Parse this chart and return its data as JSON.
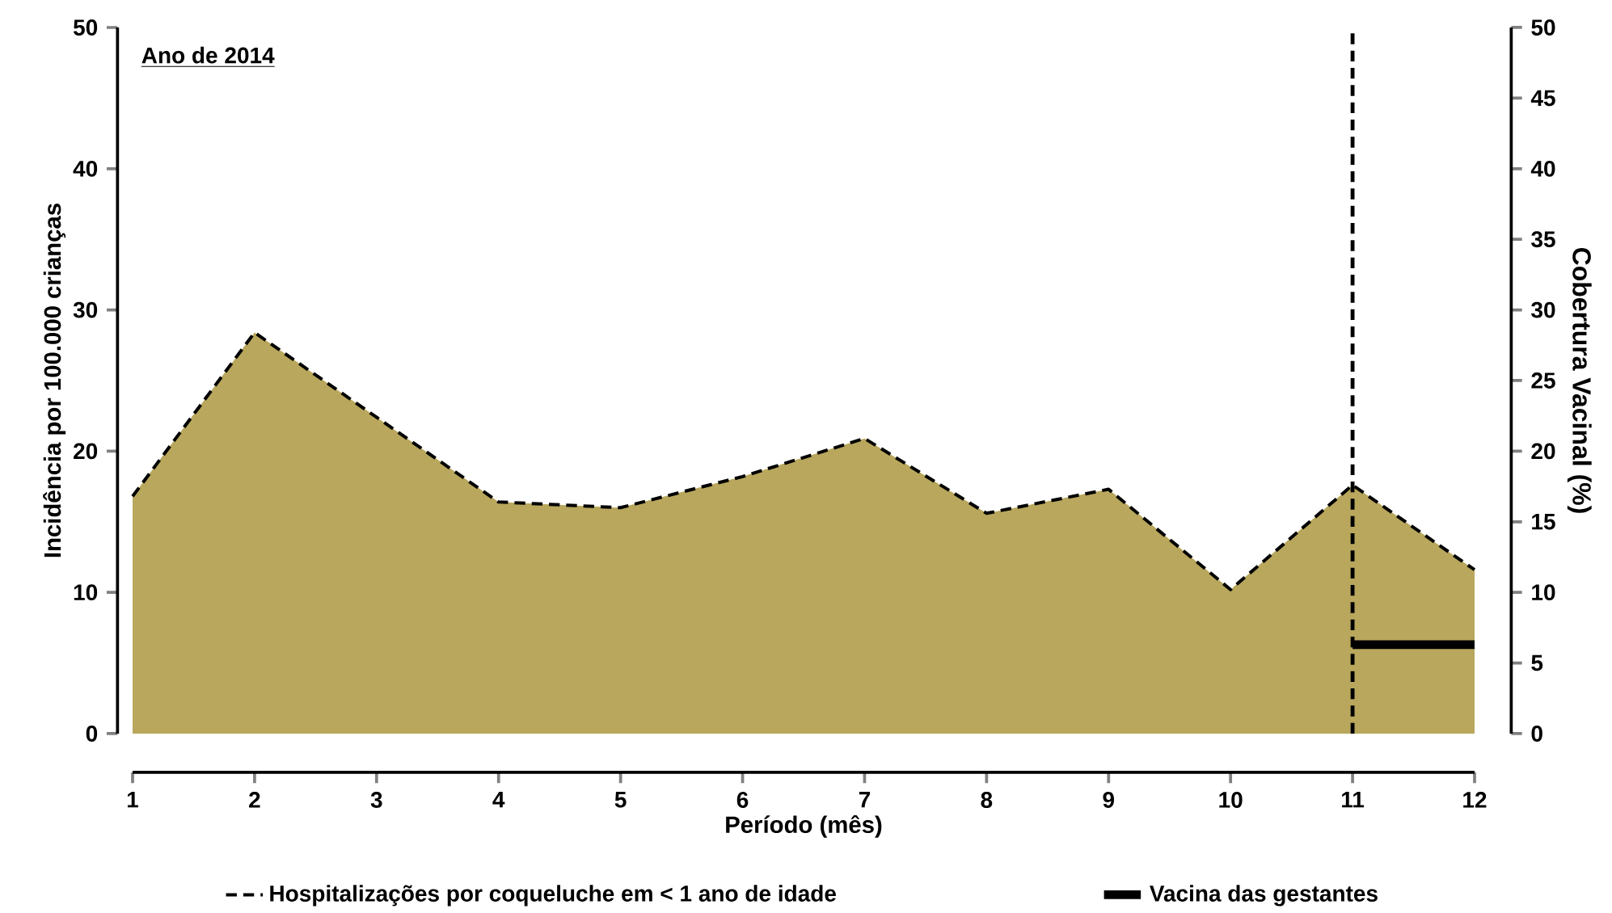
{
  "chart_data": {
    "type": "area",
    "xlabel": "Período (mês)",
    "ylabel": "Incidência por 100.000 crianças",
    "y2label": "Cobertura Vacinal (%)",
    "annotations": [
      "Ano de 2014"
    ],
    "x": [
      1,
      2,
      3,
      4,
      5,
      6,
      7,
      8,
      9,
      10,
      11,
      12
    ],
    "series": [
      {
        "name": "Hospitalizações por coqueluche em < 1 ano de idade",
        "color": "#b8a75c",
        "line_style": "dashed",
        "values": [
          16.8,
          28.4,
          22.4,
          16.4,
          16.0,
          18.2,
          20.9,
          15.6,
          17.3,
          10.2,
          17.6,
          11.6
        ]
      },
      {
        "name": "Vacina das gestantes",
        "type": "line",
        "axis": "y2",
        "color": "#000000",
        "line_style": "solid",
        "x": [
          11,
          12
        ],
        "values": [
          6.3,
          6.3
        ]
      }
    ],
    "ref_lines": [
      {
        "axis": "x",
        "value": 11,
        "color": "#000000",
        "line_style": "dashed"
      }
    ],
    "xlim": [
      1,
      12
    ],
    "xticks": [
      1,
      2,
      3,
      4,
      5,
      6,
      7,
      8,
      9,
      10,
      11,
      12
    ],
    "ylim": [
      0,
      50
    ],
    "yticks": [
      0,
      10,
      20,
      30,
      40,
      50
    ],
    "y2lim": [
      0,
      50
    ],
    "y2ticks": [
      0,
      5,
      10,
      15,
      20,
      25,
      30,
      35,
      40,
      45,
      50
    ],
    "grid": false,
    "legend": "bottom",
    "marker": "none"
  }
}
